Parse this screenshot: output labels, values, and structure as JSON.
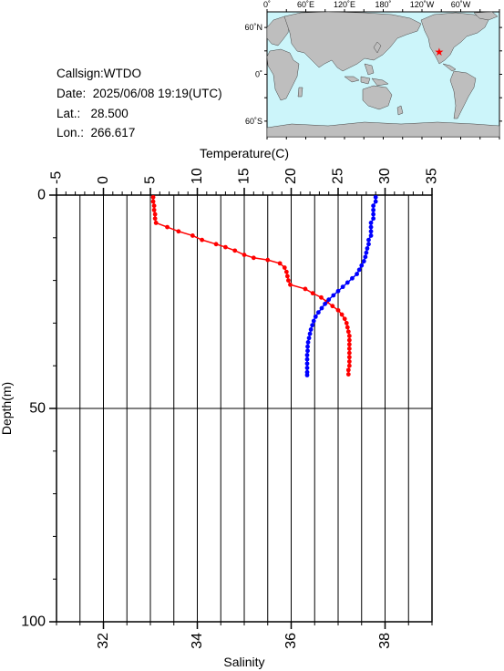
{
  "meta": {
    "callsign": "Callsign:WTDO",
    "date": "Date:  2025/06/08 19:19(UTC)",
    "lat": "Lat.:   28.500",
    "lon": "Lon.:  266.617"
  },
  "map": {
    "lon_labels": [
      "0˚",
      "60˚E",
      "120˚E",
      "180˚",
      "120˚W",
      "60˚W"
    ],
    "lat_labels": [
      "60˚N",
      "0˚",
      "60˚S"
    ],
    "station_lon": 266.617,
    "station_lat": 28.5,
    "ocean_color": "#ccf5fa",
    "land_color": "#bebebe",
    "marker_color": "#ff0000"
  },
  "chart_data": {
    "type": "scatter",
    "grid": true,
    "depth_axis": {
      "label": "Depth(m)",
      "range": [
        0,
        100
      ],
      "inverted": true,
      "ticks": [
        0,
        50,
        100
      ]
    },
    "temperature_axis": {
      "label": "Temperature(C)",
      "range": [
        -5,
        35
      ],
      "ticks": [
        -5,
        0,
        5,
        10,
        15,
        20,
        25,
        30,
        35
      ]
    },
    "salinity_axis": {
      "label": "Salinity",
      "range": [
        31,
        39
      ],
      "ticks": [
        32,
        34,
        36,
        38
      ]
    },
    "series": [
      {
        "color": "#ff0000",
        "axis": "temperature",
        "points": [
          [
            5.3,
            0.5
          ],
          [
            5.3,
            1.5
          ],
          [
            5.4,
            2.5
          ],
          [
            5.4,
            3.5
          ],
          [
            5.5,
            4.5
          ],
          [
            5.5,
            5.5
          ],
          [
            5.6,
            6.5
          ],
          [
            6.8,
            7.5
          ],
          [
            8.0,
            8.5
          ],
          [
            9.5,
            9.5
          ],
          [
            10.5,
            10.5
          ],
          [
            12.0,
            11.5
          ],
          [
            13.0,
            12.2
          ],
          [
            14.0,
            13.0
          ],
          [
            15.0,
            14.0
          ],
          [
            16.0,
            14.7
          ],
          [
            17.5,
            15.2
          ],
          [
            18.8,
            16.0
          ],
          [
            19.3,
            17.0
          ],
          [
            19.5,
            18.0
          ],
          [
            19.6,
            19.0
          ],
          [
            19.7,
            20.0
          ],
          [
            19.9,
            21.0
          ],
          [
            21.5,
            22.0
          ],
          [
            22.3,
            23.0
          ],
          [
            23.2,
            24.0
          ],
          [
            23.8,
            25.0
          ],
          [
            24.4,
            26.0
          ],
          [
            25.0,
            27.0
          ],
          [
            25.4,
            28.0
          ],
          [
            25.7,
            29.0
          ],
          [
            25.9,
            30.0
          ],
          [
            26.0,
            31.0
          ],
          [
            26.1,
            32.0
          ],
          [
            26.2,
            33.0
          ],
          [
            26.2,
            34.0
          ],
          [
            26.2,
            35.0
          ],
          [
            26.2,
            36.0
          ],
          [
            26.2,
            37.0
          ],
          [
            26.2,
            38.0
          ],
          [
            26.2,
            39.0
          ],
          [
            26.2,
            40.0
          ],
          [
            26.1,
            41.0
          ],
          [
            26.1,
            42.0
          ]
        ]
      },
      {
        "color": "#0000ff",
        "axis": "salinity",
        "points": [
          [
            37.8,
            0.5
          ],
          [
            37.8,
            1.5
          ],
          [
            37.75,
            2.5
          ],
          [
            37.75,
            3.5
          ],
          [
            37.75,
            4.5
          ],
          [
            37.75,
            5.5
          ],
          [
            37.7,
            6.5
          ],
          [
            37.7,
            7.5
          ],
          [
            37.7,
            8.5
          ],
          [
            37.7,
            9.5
          ],
          [
            37.65,
            10.5
          ],
          [
            37.65,
            11.5
          ],
          [
            37.62,
            12.5
          ],
          [
            37.6,
            13.5
          ],
          [
            37.58,
            14.5
          ],
          [
            37.55,
            15.5
          ],
          [
            37.5,
            16.5
          ],
          [
            37.45,
            17.5
          ],
          [
            37.4,
            18.5
          ],
          [
            37.3,
            19.5
          ],
          [
            37.2,
            20.5
          ],
          [
            37.1,
            21.5
          ],
          [
            37.0,
            22.5
          ],
          [
            36.9,
            23.5
          ],
          [
            36.8,
            24.5
          ],
          [
            36.72,
            25.5
          ],
          [
            36.65,
            26.5
          ],
          [
            36.58,
            27.5
          ],
          [
            36.52,
            28.5
          ],
          [
            36.48,
            29.5
          ],
          [
            36.45,
            30.5
          ],
          [
            36.42,
            31.5
          ],
          [
            36.4,
            32.5
          ],
          [
            36.38,
            33.5
          ],
          [
            36.36,
            34.5
          ],
          [
            36.35,
            35.5
          ],
          [
            36.35,
            36.5
          ],
          [
            36.34,
            37.5
          ],
          [
            36.34,
            38.5
          ],
          [
            36.34,
            39.5
          ],
          [
            36.34,
            40.5
          ],
          [
            36.34,
            41.5
          ],
          [
            36.34,
            42.2
          ]
        ]
      }
    ]
  }
}
